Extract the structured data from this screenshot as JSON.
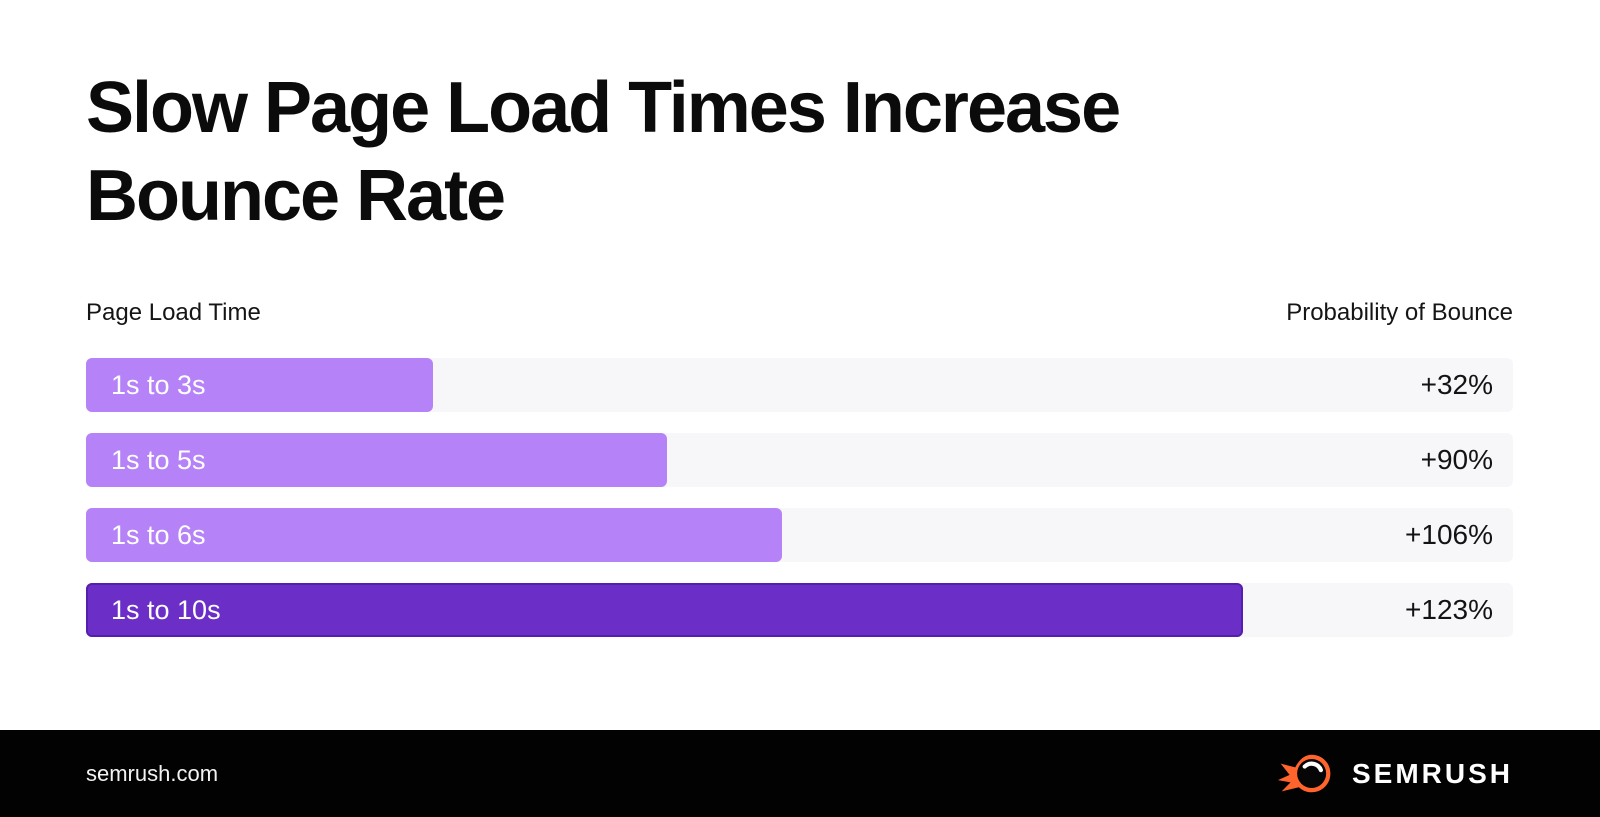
{
  "header": {
    "title_lines": [
      "Slow Page Load Times Increase",
      "Bounce Rate"
    ]
  },
  "axis_labels": {
    "left": "Page Load Time",
    "right": "Probability of Bounce"
  },
  "chart_data": {
    "type": "bar",
    "orientation": "horizontal",
    "title": "Slow Page Load Times Increase Bounce Rate",
    "categories": [
      "1s to 3s",
      "1s to 5s",
      "1s to 6s",
      "1s to 10s"
    ],
    "values": [
      32,
      90,
      106,
      123
    ],
    "value_labels": [
      "+32%",
      "+90%",
      "+106%",
      "+123%"
    ],
    "category_axis_label": "Page Load Time",
    "value_axis_label": "Probability of Bounce",
    "bar_length_pct_of_track": [
      24.3,
      40.7,
      48.8,
      81.1
    ],
    "bar_colors": [
      "#b583f7",
      "#b583f7",
      "#b583f7",
      "#6b2fc8"
    ],
    "track_color": "#f7f6f8",
    "legend": "none",
    "grid": "off"
  },
  "footer": {
    "site": "semrush.com",
    "brand": "SEMRUSH"
  },
  "colors": {
    "bar_light": "#b583f7",
    "bar_dark": "#6b2fc8",
    "track": "#f7f6f8",
    "title_text": "#0b0b0b",
    "bar_label_text": "#ffffff",
    "value_text": "#131313",
    "footer_bg": "#020202",
    "footer_text": "#f2f2f2",
    "logo_orange": "#ff642d"
  }
}
